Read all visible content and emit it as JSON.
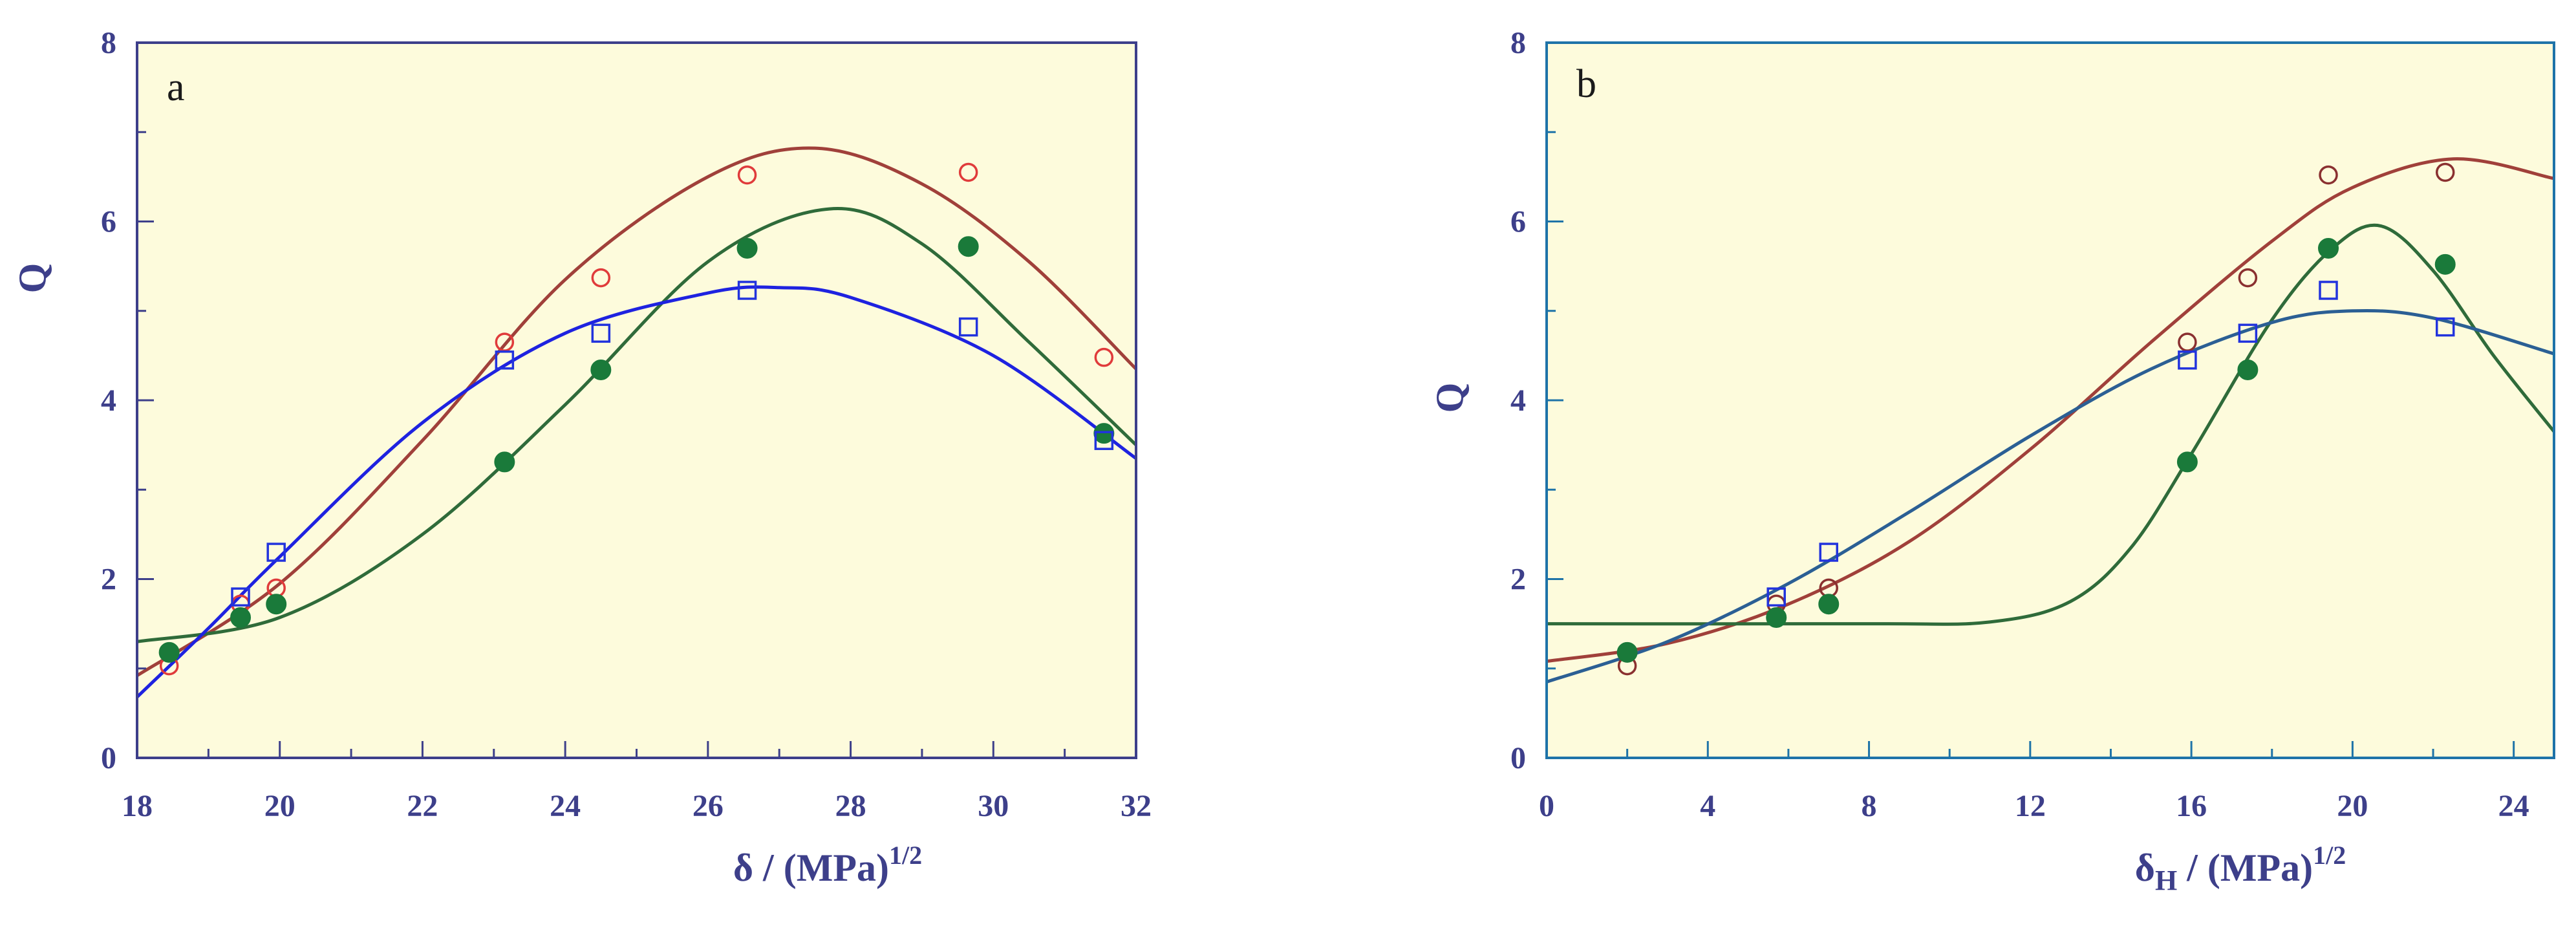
{
  "chart_data": [
    {
      "type": "scatter",
      "panel_label": "a",
      "xlabel": "δ / (MPa)",
      "xlabel_sup": "1/2",
      "ylabel": "Q",
      "xlim": [
        18,
        32
      ],
      "ylim": [
        0,
        8
      ],
      "xticks": [
        18,
        20,
        22,
        24,
        26,
        28,
        30,
        32
      ],
      "yticks": [
        0,
        2,
        4,
        6,
        8
      ],
      "background": "#fdfbdc",
      "frame_color": "#3d3f8a",
      "series": [
        {
          "marker": "open-circle",
          "color": "#e03b3b",
          "line_color": "#a0403a",
          "x": [
            18.45,
            19.45,
            19.95,
            23.15,
            24.5,
            26.55,
            29.65,
            31.55
          ],
          "y": [
            1.03,
            1.72,
            1.9,
            4.65,
            5.37,
            6.52,
            6.55,
            4.48
          ],
          "fit": [
            [
              18.0,
              0.92
            ],
            [
              20.0,
              1.95
            ],
            [
              22.0,
              3.55
            ],
            [
              24.0,
              5.35
            ],
            [
              26.0,
              6.5
            ],
            [
              27.5,
              6.82
            ],
            [
              29.0,
              6.42
            ],
            [
              30.5,
              5.55
            ],
            [
              32.0,
              4.35
            ]
          ]
        },
        {
          "marker": "filled-circle",
          "color": "#1a7a3a",
          "line_color": "#2f6b3a",
          "x": [
            18.45,
            19.45,
            19.95,
            23.15,
            24.5,
            26.55,
            29.65,
            31.55
          ],
          "y": [
            1.18,
            1.57,
            1.72,
            3.31,
            4.34,
            5.7,
            5.72,
            3.63
          ],
          "fit": [
            [
              18.0,
              1.3
            ],
            [
              20.0,
              1.57
            ],
            [
              22.0,
              2.5
            ],
            [
              24.0,
              3.95
            ],
            [
              26.0,
              5.55
            ],
            [
              27.7,
              6.14
            ],
            [
              29.0,
              5.75
            ],
            [
              30.5,
              4.65
            ],
            [
              32.0,
              3.5
            ]
          ]
        },
        {
          "marker": "open-square",
          "color": "#2233dd",
          "line_color": "#1e22e0",
          "x": [
            19.45,
            19.95,
            23.15,
            24.5,
            26.55,
            29.65,
            31.55
          ],
          "y": [
            1.8,
            2.3,
            4.45,
            4.75,
            5.23,
            4.82,
            3.55
          ],
          "fit": [
            [
              18.0,
              0.68
            ],
            [
              19.0,
              1.45
            ],
            [
              20.0,
              2.25
            ],
            [
              22.0,
              3.75
            ],
            [
              24.0,
              4.75
            ],
            [
              26.0,
              5.2
            ],
            [
              27.0,
              5.26
            ],
            [
              28.0,
              5.15
            ],
            [
              30.0,
              4.5
            ],
            [
              32.0,
              3.35
            ]
          ]
        }
      ]
    },
    {
      "type": "scatter",
      "panel_label": "b",
      "xlabel": "δ",
      "xlabel_sub": "H",
      "xlabel_rest": " / (MPa)",
      "xlabel_sup": "1/2",
      "ylabel": "Q",
      "xlim": [
        0,
        25
      ],
      "ylim": [
        0,
        8
      ],
      "xticks": [
        0,
        4,
        8,
        12,
        16,
        20,
        24
      ],
      "yticks": [
        0,
        2,
        4,
        6,
        8
      ],
      "background": "#fdfbdc",
      "frame_color": "#1e73a8",
      "series": [
        {
          "marker": "open-circle",
          "color": "#8a3030",
          "line_color": "#a0403a",
          "x": [
            2.0,
            5.7,
            7.0,
            15.9,
            17.4,
            19.4,
            22.3
          ],
          "y": [
            1.03,
            1.72,
            1.9,
            4.65,
            5.37,
            6.52,
            6.55
          ],
          "fit": [
            [
              0.0,
              1.08
            ],
            [
              3.0,
              1.28
            ],
            [
              6.0,
              1.72
            ],
            [
              9.0,
              2.42
            ],
            [
              12.0,
              3.45
            ],
            [
              15.0,
              4.65
            ],
            [
              18.0,
              5.78
            ],
            [
              20.0,
              6.38
            ],
            [
              22.5,
              6.7
            ],
            [
              25.0,
              6.48
            ]
          ]
        },
        {
          "marker": "filled-circle",
          "color": "#1a7a3a",
          "line_color": "#2f6b3a",
          "x": [
            2.0,
            5.7,
            7.0,
            15.9,
            17.4,
            19.4,
            22.3
          ],
          "y": [
            1.18,
            1.57,
            1.72,
            3.31,
            4.34,
            5.7,
            5.52
          ],
          "fit": [
            [
              0.0,
              1.5
            ],
            [
              8.0,
              1.5
            ],
            [
              11.0,
              1.52
            ],
            [
              13.0,
              1.75
            ],
            [
              14.5,
              2.35
            ],
            [
              16.0,
              3.4
            ],
            [
              18.0,
              4.9
            ],
            [
              19.5,
              5.7
            ],
            [
              20.7,
              5.95
            ],
            [
              22.0,
              5.45
            ],
            [
              23.5,
              4.5
            ],
            [
              25.0,
              3.65
            ]
          ]
        },
        {
          "marker": "open-square",
          "color": "#2233dd",
          "line_color": "#2b5f94",
          "x": [
            5.7,
            7.0,
            15.9,
            17.4,
            19.4,
            22.3
          ],
          "y": [
            1.8,
            2.3,
            4.45,
            4.75,
            5.23,
            4.82
          ],
          "fit": [
            [
              0.0,
              0.85
            ],
            [
              3.0,
              1.3
            ],
            [
              6.0,
              1.95
            ],
            [
              9.0,
              2.75
            ],
            [
              12.0,
              3.6
            ],
            [
              15.0,
              4.35
            ],
            [
              18.0,
              4.87
            ],
            [
              20.0,
              5.0
            ],
            [
              22.0,
              4.92
            ],
            [
              25.0,
              4.52
            ]
          ]
        }
      ]
    }
  ]
}
